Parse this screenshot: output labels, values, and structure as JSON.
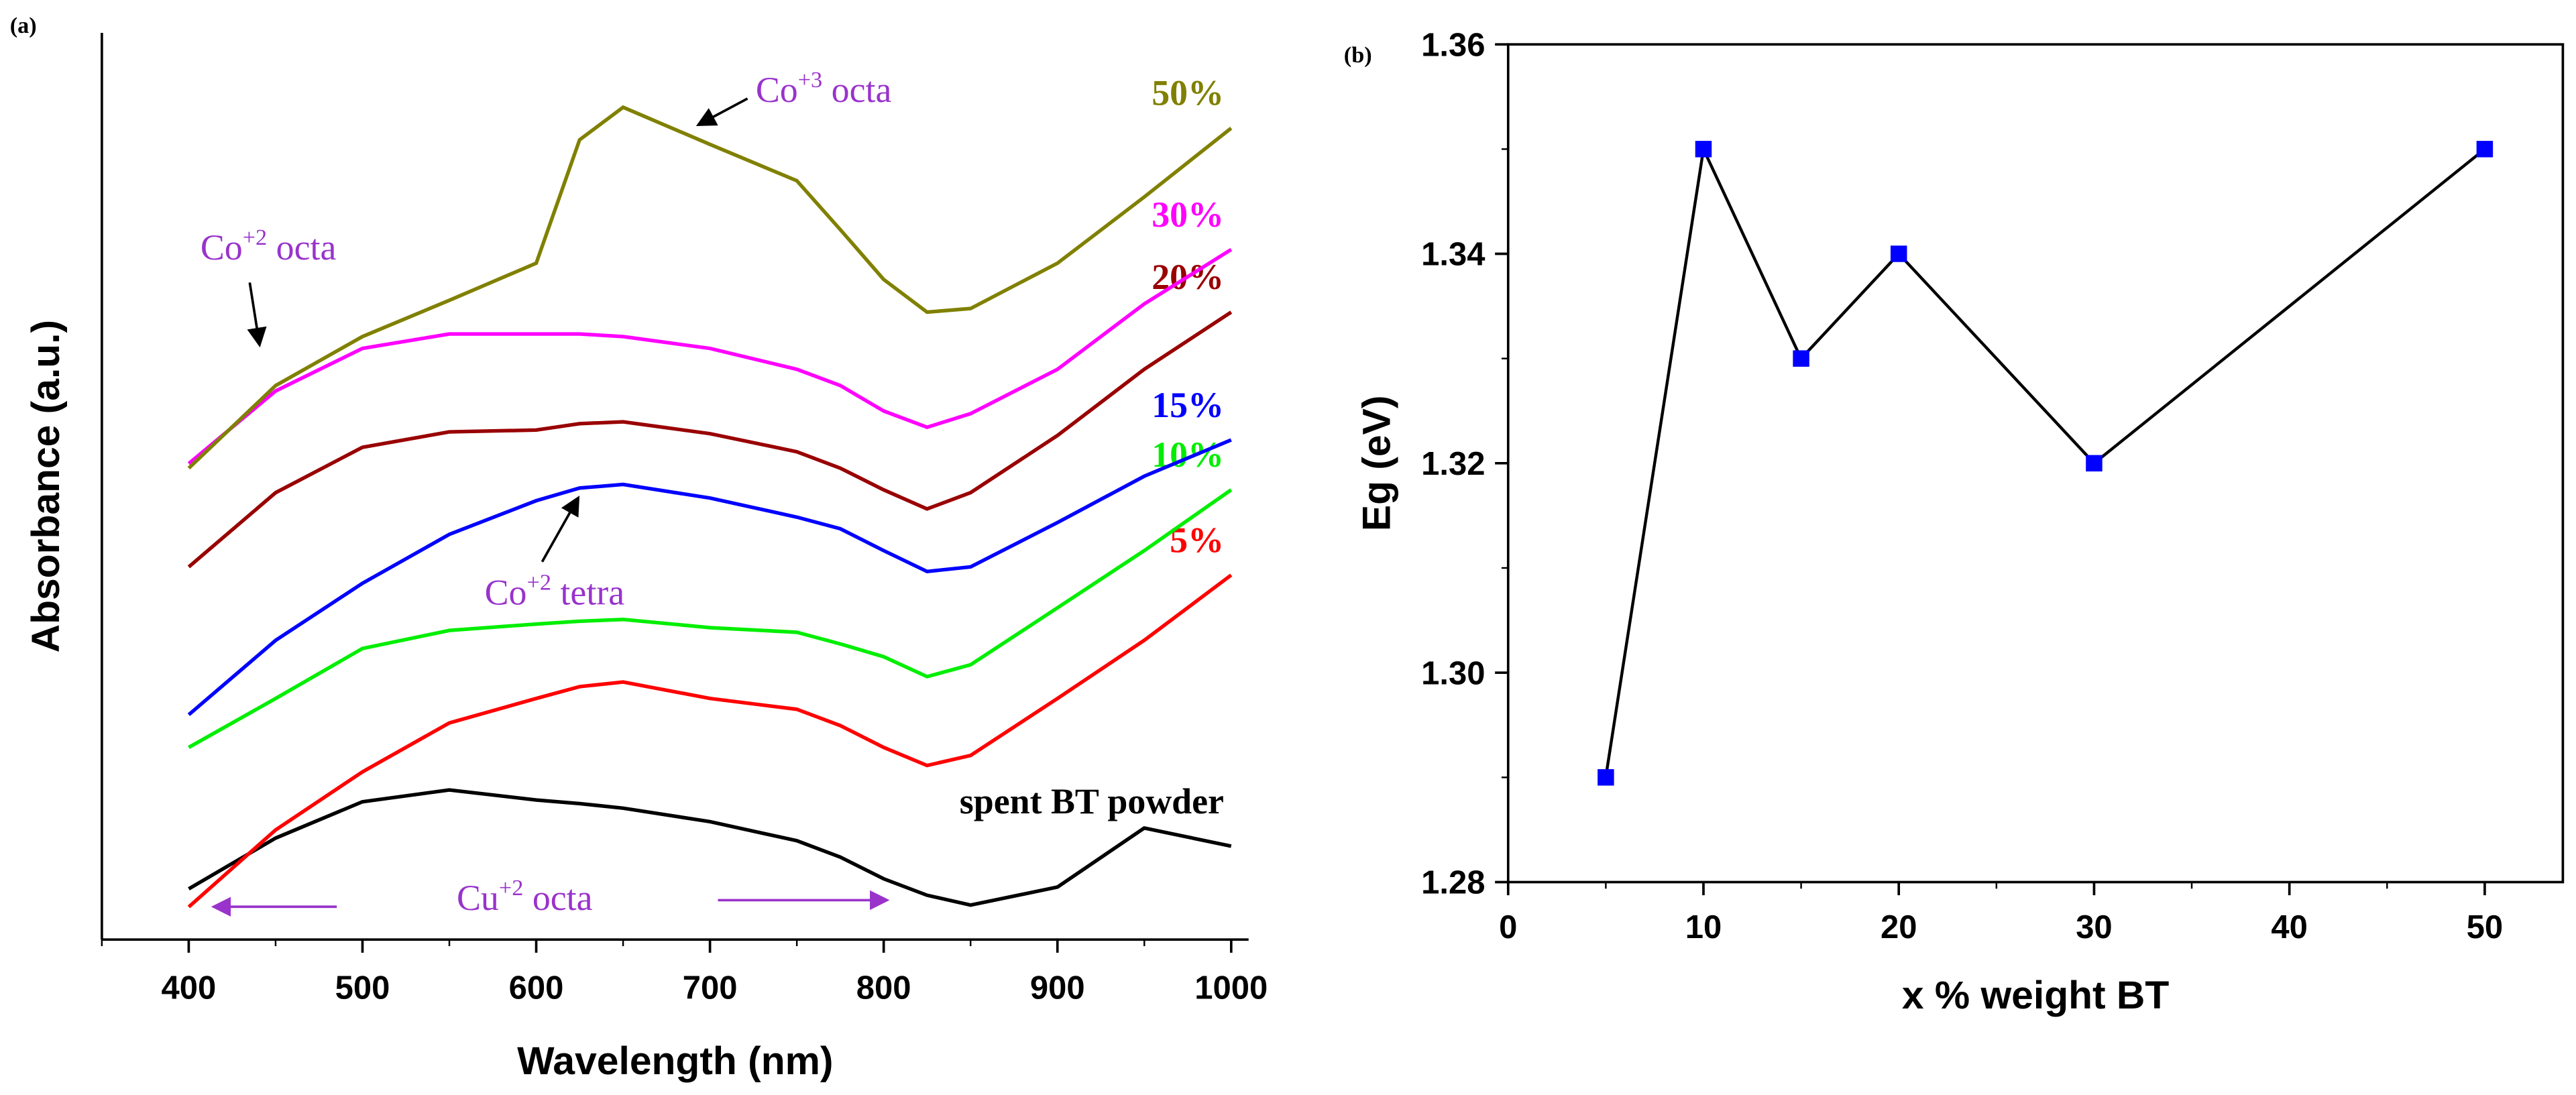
{
  "chart_data": [
    {
      "type": "line",
      "panel": "(a)",
      "x_label": "Wavelength (nm)",
      "y_label": "Absorbance (a.u.)",
      "xlim": [
        350,
        1010
      ],
      "xticks": [
        400,
        500,
        600,
        700,
        800,
        900,
        1000
      ],
      "ylim": [
        0,
        100
      ],
      "x": [
        400,
        450,
        500,
        550,
        600,
        625,
        650,
        700,
        750,
        775,
        800,
        825,
        850,
        900,
        950,
        1000
      ],
      "series": [
        {
          "name": "spent BT powder",
          "color": "#000000",
          "values": [
            5.6,
            11.2,
            15.2,
            16.5,
            15.4,
            15.0,
            14.5,
            13.0,
            10.9,
            9.1,
            6.7,
            4.9,
            3.8,
            5.8,
            12.3,
            10.3
          ]
        },
        {
          "name": "5%",
          "color": "#ff0000",
          "values": [
            3.6,
            12.1,
            18.5,
            23.9,
            26.6,
            27.9,
            28.4,
            26.6,
            25.4,
            23.6,
            21.2,
            19.2,
            20.3,
            26.6,
            33.0,
            40.2
          ]
        },
        {
          "name": "10%",
          "color": "#00ee00",
          "values": [
            21.2,
            26.6,
            32.1,
            34.1,
            34.8,
            35.1,
            35.3,
            34.4,
            33.9,
            32.6,
            31.2,
            29.0,
            30.3,
            36.6,
            42.9,
            49.6
          ]
        },
        {
          "name": "15%",
          "color": "#0000ff",
          "values": [
            24.8,
            33.0,
            39.3,
            44.7,
            48.4,
            49.8,
            50.2,
            48.7,
            46.6,
            45.3,
            42.9,
            40.6,
            41.1,
            46.0,
            51.1,
            55.1
          ]
        },
        {
          "name": "20%",
          "color": "#990000",
          "values": [
            41.1,
            49.3,
            54.3,
            56.0,
            56.2,
            56.9,
            57.1,
            55.8,
            53.8,
            52.0,
            49.6,
            47.5,
            49.3,
            55.6,
            62.9,
            69.2
          ]
        },
        {
          "name": "30%",
          "color": "#ff00ff",
          "values": [
            52.5,
            60.5,
            65.2,
            66.8,
            66.8,
            66.8,
            66.5,
            65.2,
            62.9,
            61.1,
            58.3,
            56.5,
            58.0,
            62.9,
            70.1,
            76.1
          ]
        },
        {
          "name": "50%",
          "color": "#808000",
          "values": [
            52.0,
            61.1,
            66.5,
            70.5,
            74.6,
            88.2,
            91.8,
            87.7,
            83.7,
            78.3,
            72.8,
            69.2,
            69.6,
            74.6,
            81.9,
            89.5
          ]
        }
      ],
      "annotations": [
        {
          "base": "Co",
          "sup": "+3",
          "rest": " octa"
        },
        {
          "base": "Co",
          "sup": "+2",
          "rest": " octa"
        },
        {
          "base": "Co",
          "sup": "+2",
          "rest": " tetra"
        },
        {
          "base": "Cu",
          "sup": "+2",
          "rest": " octa"
        }
      ]
    },
    {
      "type": "line-scatter",
      "panel": "(b)",
      "x_label": "x % weight BT",
      "y_label": "Eg (eV)",
      "xlim": [
        0,
        54
      ],
      "xticks": [
        0,
        10,
        20,
        30,
        40,
        50
      ],
      "ylim": [
        1.28,
        1.36
      ],
      "yticks": [
        1.28,
        {
          "value": 1.3,
          "label": "1.30"
        },
        1.32,
        1.34,
        1.36
      ],
      "x": [
        5,
        10,
        15,
        20,
        30,
        50
      ],
      "values": [
        1.29,
        1.35,
        1.33,
        1.34,
        1.32,
        1.35
      ],
      "color": "#0000ff",
      "line_color": "#000000"
    }
  ]
}
